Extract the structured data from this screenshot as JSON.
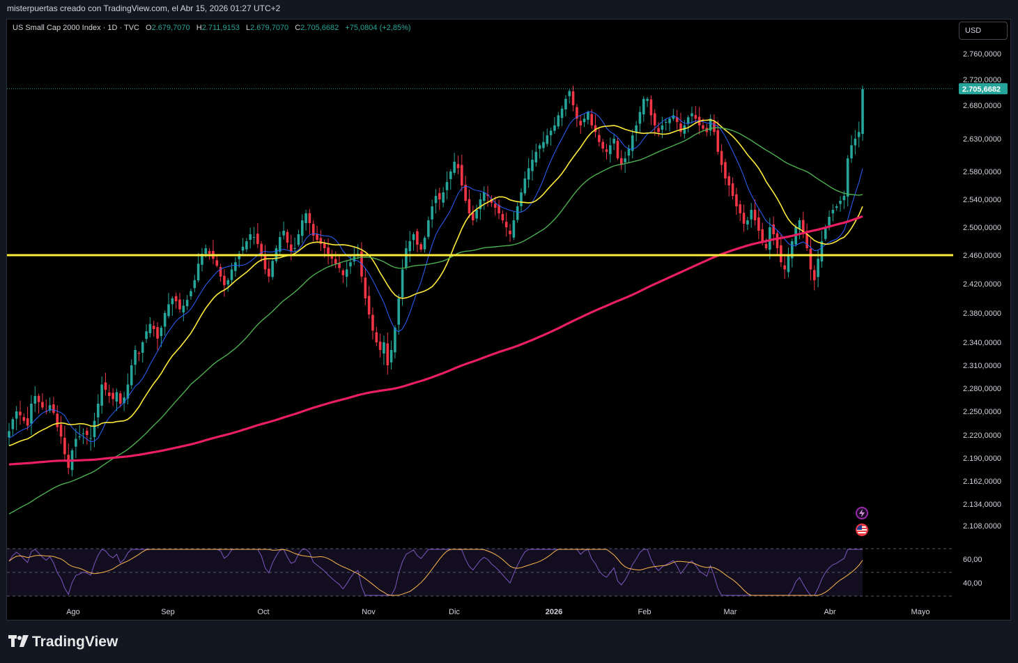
{
  "caption": "misterpuertas creado con TradingView.com, el Abr 15, 2026 01:27 UTC+2",
  "legend": {
    "symbol": "US Small Cap 2000 Index · 1D · TVC",
    "open_label": "O",
    "open": "2.679,7070",
    "high_label": "H",
    "high": "2.711,9153",
    "low_label": "L",
    "low": "2.679,7070",
    "close_label": "C",
    "close": "2.705,6682",
    "change": "+75,0804 (+2,85%)"
  },
  "currency_button": "USD",
  "brand": "TradingView",
  "colors": {
    "up": "#26a69a",
    "down": "#f23645",
    "sma_short": "#2962ff",
    "sma_mid": "#ffeb3b",
    "sma_long": "#4caf50",
    "sma_200": "#e91e63",
    "level": "#ffeb3b",
    "rsi": "#7e57c2",
    "rsi_ma": "#ffb74d"
  },
  "icons": [
    "lightning-icon",
    "us-flag-icon"
  ],
  "chart_data": {
    "type": "candlestick",
    "y_ticks": [
      "2.760,0000",
      "2.720,0000",
      "2.680,0000",
      "2.630,0000",
      "2.580,0000",
      "2.540,0000",
      "2.500,0000",
      "2.460,0000",
      "2.420,0000",
      "2.380,0000",
      "2.340,0000",
      "2.310,0000",
      "2.280,0000",
      "2.250,0000",
      "2.220,0000",
      "2.190,0000",
      "2.162,0000",
      "2.134,0000",
      "2.108,0000"
    ],
    "y_tick_values": [
      2760,
      2720,
      2680,
      2630,
      2580,
      2540,
      2500,
      2460,
      2420,
      2380,
      2340,
      2310,
      2280,
      2250,
      2220,
      2190,
      2162,
      2134,
      2108
    ],
    "x_ticks": [
      "Ago",
      "Sep",
      "Oct",
      "Nov",
      "Dic",
      "2026",
      "Feb",
      "Mar",
      "Abr",
      "Mayo"
    ],
    "last_price_label": "2.705,6682",
    "last_price": 2705.67,
    "horizontal_level": 2460,
    "close_series": [
      2225,
      2240,
      2250,
      2245,
      2238,
      2232,
      2260,
      2270,
      2262,
      2255,
      2250,
      2258,
      2248,
      2230,
      2218,
      2195,
      2178,
      2200,
      2215,
      2218,
      2222,
      2220,
      2216,
      2238,
      2260,
      2285,
      2278,
      2270,
      2266,
      2275,
      2260,
      2268,
      2285,
      2310,
      2330,
      2325,
      2340,
      2355,
      2365,
      2358,
      2345,
      2360,
      2380,
      2392,
      2400,
      2396,
      2385,
      2390,
      2398,
      2410,
      2425,
      2448,
      2462,
      2470,
      2462,
      2455,
      2445,
      2430,
      2418,
      2425,
      2440,
      2450,
      2462,
      2472,
      2480,
      2490,
      2486,
      2476,
      2460,
      2440,
      2430,
      2452,
      2470,
      2486,
      2495,
      2478,
      2466,
      2470,
      2490,
      2510,
      2520,
      2506,
      2488,
      2482,
      2476,
      2470,
      2462,
      2455,
      2448,
      2442,
      2432,
      2440,
      2450,
      2458,
      2462,
      2430,
      2400,
      2378,
      2356,
      2340,
      2330,
      2340,
      2310,
      2330,
      2360,
      2400,
      2440,
      2470,
      2480,
      2490,
      2475,
      2468,
      2485,
      2510,
      2530,
      2545,
      2540,
      2550,
      2565,
      2580,
      2595,
      2585,
      2560,
      2538,
      2520,
      2510,
      2525,
      2540,
      2550,
      2545,
      2535,
      2528,
      2520,
      2510,
      2500,
      2490,
      2510,
      2530,
      2550,
      2570,
      2585,
      2598,
      2610,
      2620,
      2625,
      2635,
      2642,
      2650,
      2665,
      2675,
      2690,
      2702,
      2680,
      2660,
      2650,
      2660,
      2670,
      2650,
      2640,
      2625,
      2615,
      2610,
      2620,
      2630,
      2600,
      2590,
      2600,
      2615,
      2635,
      2650,
      2670,
      2690,
      2690,
      2665,
      2650,
      2640,
      2650,
      2655,
      2660,
      2665,
      2655,
      2640,
      2650,
      2662,
      2668,
      2660,
      2650,
      2645,
      2640,
      2660,
      2640,
      2610,
      2590,
      2570,
      2560,
      2545,
      2530,
      2520,
      2505,
      2510,
      2525,
      2510,
      2495,
      2480,
      2470,
      2500,
      2490,
      2470,
      2450,
      2440,
      2460,
      2480,
      2500,
      2510,
      2490,
      2470,
      2440,
      2425,
      2455,
      2480,
      2500,
      2515,
      2525,
      2530,
      2538,
      2545,
      2600,
      2620,
      2630,
      2640,
      2705
    ]
  }
}
